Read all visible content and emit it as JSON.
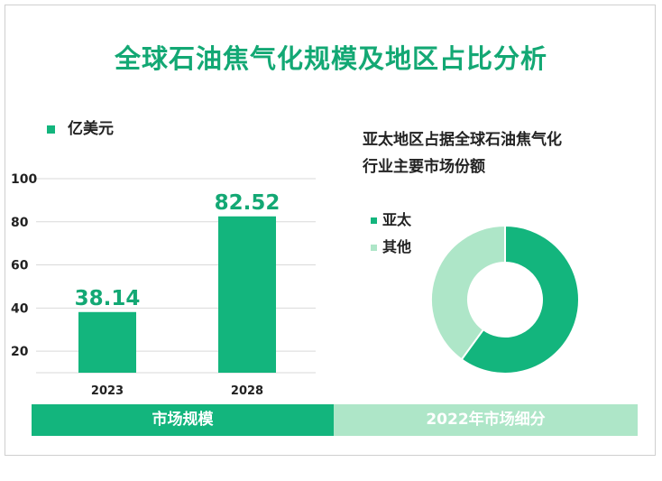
{
  "header": {
    "title": "全球石油焦气化规模及地区占比分析"
  },
  "colors": {
    "accent": "#13b57d",
    "light": "#aee6c8",
    "title": "#13a874"
  },
  "chart_data": [
    {
      "type": "bar",
      "legend": "亿美元",
      "categories": [
        "2023",
        "2028"
      ],
      "values": [
        38.14,
        82.52
      ],
      "value_labels": [
        "38.14",
        "82.52"
      ],
      "ylim": [
        10,
        100
      ],
      "yticks": [
        20,
        40,
        60,
        80,
        100
      ],
      "ytick_labels": [
        "20",
        "40",
        "60",
        "80",
        "100"
      ],
      "grid": true
    },
    {
      "type": "pie",
      "title_lines": [
        "亚太地区占据全球石油焦气化",
        "行业主要市场份额"
      ],
      "labels": [
        "亚太",
        "其他"
      ],
      "values": [
        60,
        40
      ],
      "colors": [
        "#13b57d",
        "#aee6c8"
      ]
    }
  ],
  "footer": {
    "left": "市场规模",
    "right": "2022年市场细分"
  }
}
